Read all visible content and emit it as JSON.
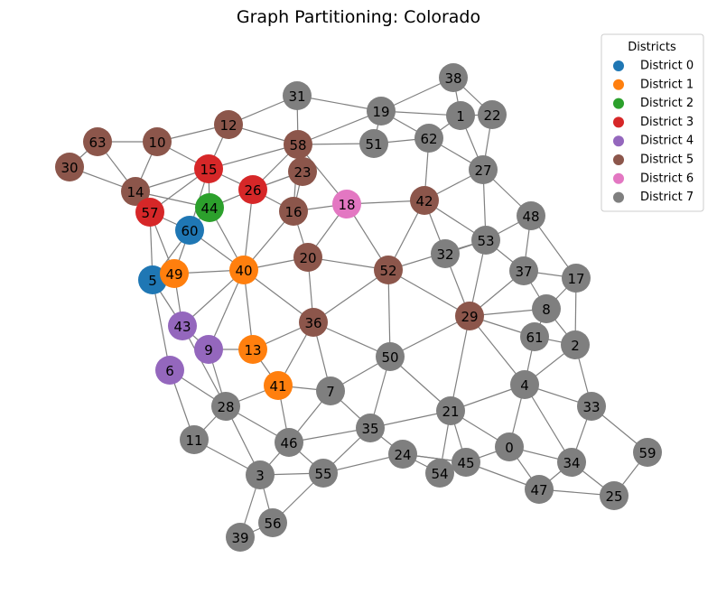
{
  "title": "Graph Partitioning: Colorado",
  "legend": {
    "title": "Districts",
    "entries": [
      {
        "label": "District 0",
        "color": "#1f77b4"
      },
      {
        "label": "District 1",
        "color": "#ff7f0e"
      },
      {
        "label": "District 2",
        "color": "#2ca02c"
      },
      {
        "label": "District 3",
        "color": "#d62728"
      },
      {
        "label": "District 4",
        "color": "#9467bd"
      },
      {
        "label": "District 5",
        "color": "#8c564b"
      },
      {
        "label": "District 6",
        "color": "#e377c2"
      },
      {
        "label": "District 7",
        "color": "#7f7f7f"
      }
    ]
  },
  "nodes": [
    {
      "id": "0",
      "district": 7
    },
    {
      "id": "1",
      "district": 7
    },
    {
      "id": "2",
      "district": 7
    },
    {
      "id": "3",
      "district": 7
    },
    {
      "id": "4",
      "district": 7
    },
    {
      "id": "5",
      "district": 0
    },
    {
      "id": "6",
      "district": 4
    },
    {
      "id": "7",
      "district": 7
    },
    {
      "id": "8",
      "district": 7
    },
    {
      "id": "9",
      "district": 4
    },
    {
      "id": "10",
      "district": 5
    },
    {
      "id": "11",
      "district": 7
    },
    {
      "id": "12",
      "district": 5
    },
    {
      "id": "13",
      "district": 1
    },
    {
      "id": "14",
      "district": 5
    },
    {
      "id": "15",
      "district": 3
    },
    {
      "id": "16",
      "district": 5
    },
    {
      "id": "17",
      "district": 7
    },
    {
      "id": "18",
      "district": 6
    },
    {
      "id": "19",
      "district": 7
    },
    {
      "id": "20",
      "district": 5
    },
    {
      "id": "21",
      "district": 7
    },
    {
      "id": "22",
      "district": 7
    },
    {
      "id": "23",
      "district": 5
    },
    {
      "id": "24",
      "district": 7
    },
    {
      "id": "25",
      "district": 7
    },
    {
      "id": "26",
      "district": 3
    },
    {
      "id": "27",
      "district": 7
    },
    {
      "id": "28",
      "district": 7
    },
    {
      "id": "29",
      "district": 5
    },
    {
      "id": "30",
      "district": 5
    },
    {
      "id": "31",
      "district": 7
    },
    {
      "id": "32",
      "district": 7
    },
    {
      "id": "33",
      "district": 7
    },
    {
      "id": "34",
      "district": 7
    },
    {
      "id": "35",
      "district": 7
    },
    {
      "id": "36",
      "district": 5
    },
    {
      "id": "37",
      "district": 7
    },
    {
      "id": "38",
      "district": 7
    },
    {
      "id": "39",
      "district": 7
    },
    {
      "id": "40",
      "district": 1
    },
    {
      "id": "41",
      "district": 1
    },
    {
      "id": "42",
      "district": 5
    },
    {
      "id": "43",
      "district": 4
    },
    {
      "id": "44",
      "district": 2
    },
    {
      "id": "45",
      "district": 7
    },
    {
      "id": "46",
      "district": 7
    },
    {
      "id": "47",
      "district": 7
    },
    {
      "id": "48",
      "district": 7
    },
    {
      "id": "49",
      "district": 1
    },
    {
      "id": "50",
      "district": 7
    },
    {
      "id": "51",
      "district": 7
    },
    {
      "id": "52",
      "district": 5
    },
    {
      "id": "53",
      "district": 7
    },
    {
      "id": "54",
      "district": 7
    },
    {
      "id": "55",
      "district": 7
    },
    {
      "id": "56",
      "district": 7
    },
    {
      "id": "57",
      "district": 3
    },
    {
      "id": "58",
      "district": 5
    },
    {
      "id": "59",
      "district": 7
    },
    {
      "id": "60",
      "district": 0
    },
    {
      "id": "61",
      "district": 7
    },
    {
      "id": "62",
      "district": 7
    },
    {
      "id": "63",
      "district": 5
    }
  ],
  "edges": [
    [
      "38",
      "19"
    ],
    [
      "38",
      "1"
    ],
    [
      "38",
      "22"
    ],
    [
      "19",
      "1"
    ],
    [
      "19",
      "62"
    ],
    [
      "19",
      "31"
    ],
    [
      "19",
      "58"
    ],
    [
      "19",
      "51"
    ],
    [
      "1",
      "22"
    ],
    [
      "1",
      "62"
    ],
    [
      "22",
      "27"
    ],
    [
      "62",
      "27"
    ],
    [
      "62",
      "51"
    ],
    [
      "62",
      "42"
    ],
    [
      "1",
      "27"
    ],
    [
      "31",
      "58"
    ],
    [
      "31",
      "12"
    ],
    [
      "12",
      "10"
    ],
    [
      "12",
      "15"
    ],
    [
      "12",
      "58"
    ],
    [
      "10",
      "63"
    ],
    [
      "10",
      "15"
    ],
    [
      "10",
      "14"
    ],
    [
      "63",
      "30"
    ],
    [
      "63",
      "14"
    ],
    [
      "30",
      "14"
    ],
    [
      "14",
      "57"
    ],
    [
      "14",
      "15"
    ],
    [
      "14",
      "44"
    ],
    [
      "15",
      "58"
    ],
    [
      "15",
      "57"
    ],
    [
      "15",
      "60"
    ],
    [
      "15",
      "26"
    ],
    [
      "15",
      "44"
    ],
    [
      "58",
      "51"
    ],
    [
      "58",
      "23"
    ],
    [
      "58",
      "26"
    ],
    [
      "58",
      "18"
    ],
    [
      "58",
      "16"
    ],
    [
      "23",
      "26"
    ],
    [
      "23",
      "16"
    ],
    [
      "26",
      "44"
    ],
    [
      "26",
      "40"
    ],
    [
      "26",
      "16"
    ],
    [
      "44",
      "60"
    ],
    [
      "44",
      "40"
    ],
    [
      "57",
      "5"
    ],
    [
      "57",
      "49"
    ],
    [
      "57",
      "60"
    ],
    [
      "60",
      "40"
    ],
    [
      "60",
      "49"
    ],
    [
      "60",
      "5"
    ],
    [
      "16",
      "40"
    ],
    [
      "16",
      "20"
    ],
    [
      "16",
      "18"
    ],
    [
      "18",
      "20"
    ],
    [
      "18",
      "42"
    ],
    [
      "18",
      "52"
    ],
    [
      "42",
      "27"
    ],
    [
      "42",
      "32"
    ],
    [
      "42",
      "52"
    ],
    [
      "42",
      "53"
    ],
    [
      "27",
      "53"
    ],
    [
      "27",
      "48"
    ],
    [
      "53",
      "32"
    ],
    [
      "53",
      "52"
    ],
    [
      "53",
      "37"
    ],
    [
      "53",
      "29"
    ],
    [
      "53",
      "48"
    ],
    [
      "48",
      "37"
    ],
    [
      "48",
      "17"
    ],
    [
      "32",
      "29"
    ],
    [
      "52",
      "20"
    ],
    [
      "52",
      "29"
    ],
    [
      "52",
      "50"
    ],
    [
      "52",
      "36"
    ],
    [
      "37",
      "17"
    ],
    [
      "37",
      "29"
    ],
    [
      "37",
      "8"
    ],
    [
      "17",
      "8"
    ],
    [
      "17",
      "2"
    ],
    [
      "8",
      "29"
    ],
    [
      "8",
      "61"
    ],
    [
      "8",
      "2"
    ],
    [
      "29",
      "61"
    ],
    [
      "29",
      "50"
    ],
    [
      "29",
      "21"
    ],
    [
      "29",
      "4"
    ],
    [
      "61",
      "4"
    ],
    [
      "61",
      "2"
    ],
    [
      "2",
      "4"
    ],
    [
      "2",
      "33"
    ],
    [
      "4",
      "33"
    ],
    [
      "4",
      "21"
    ],
    [
      "4",
      "0"
    ],
    [
      "4",
      "34"
    ],
    [
      "33",
      "34"
    ],
    [
      "33",
      "59"
    ],
    [
      "59",
      "25"
    ],
    [
      "34",
      "25"
    ],
    [
      "34",
      "47"
    ],
    [
      "34",
      "0"
    ],
    [
      "0",
      "21"
    ],
    [
      "0",
      "45"
    ],
    [
      "0",
      "47"
    ],
    [
      "47",
      "25"
    ],
    [
      "47",
      "45"
    ],
    [
      "45",
      "21"
    ],
    [
      "45",
      "24"
    ],
    [
      "21",
      "54"
    ],
    [
      "21",
      "35"
    ],
    [
      "21",
      "50"
    ],
    [
      "54",
      "24"
    ],
    [
      "24",
      "35"
    ],
    [
      "24",
      "55"
    ],
    [
      "50",
      "35"
    ],
    [
      "50",
      "7"
    ],
    [
      "50",
      "36"
    ],
    [
      "36",
      "7"
    ],
    [
      "36",
      "40"
    ],
    [
      "36",
      "41"
    ],
    [
      "36",
      "13"
    ],
    [
      "36",
      "20"
    ],
    [
      "20",
      "40"
    ],
    [
      "40",
      "49"
    ],
    [
      "40",
      "13"
    ],
    [
      "40",
      "9"
    ],
    [
      "40",
      "43"
    ],
    [
      "49",
      "5"
    ],
    [
      "49",
      "43"
    ],
    [
      "5",
      "43"
    ],
    [
      "5",
      "6"
    ],
    [
      "43",
      "9"
    ],
    [
      "43",
      "28"
    ],
    [
      "9",
      "13"
    ],
    [
      "9",
      "28"
    ],
    [
      "13",
      "41"
    ],
    [
      "41",
      "7"
    ],
    [
      "41",
      "46"
    ],
    [
      "41",
      "28"
    ],
    [
      "7",
      "35"
    ],
    [
      "7",
      "46"
    ],
    [
      "6",
      "28"
    ],
    [
      "6",
      "11"
    ],
    [
      "28",
      "11"
    ],
    [
      "28",
      "46"
    ],
    [
      "28",
      "3"
    ],
    [
      "11",
      "3"
    ],
    [
      "46",
      "35"
    ],
    [
      "46",
      "55"
    ],
    [
      "46",
      "3"
    ],
    [
      "35",
      "55"
    ],
    [
      "3",
      "55"
    ],
    [
      "3",
      "39"
    ],
    [
      "3",
      "56"
    ],
    [
      "55",
      "56"
    ],
    [
      "39",
      "56"
    ],
    [
      "24",
      "45"
    ]
  ]
}
